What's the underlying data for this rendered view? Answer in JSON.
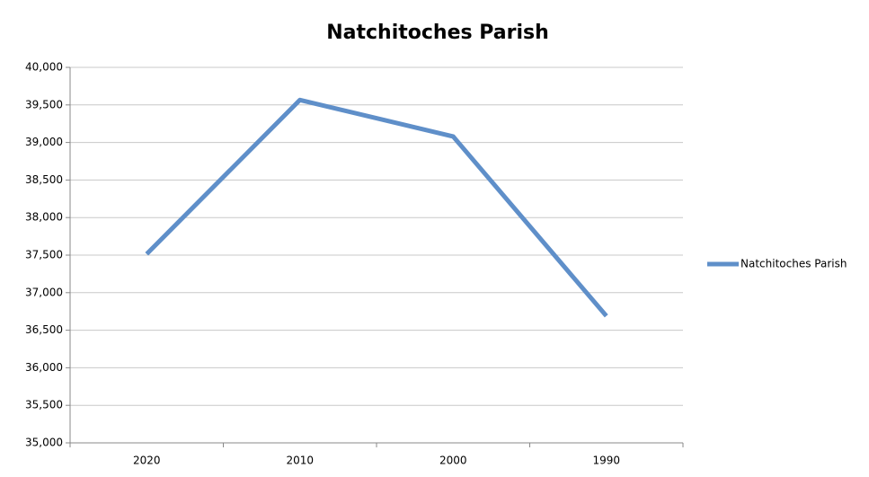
{
  "chart_data": {
    "type": "line",
    "title": "Natchitoches Parish",
    "categories": [
      "2020",
      "2010",
      "2000",
      "1990"
    ],
    "series": [
      {
        "name": "Natchitoches Parish",
        "color": "#5f8fc9",
        "values": [
          37515,
          39566,
          39080,
          36689
        ]
      }
    ],
    "ylim": [
      35000,
      40000
    ],
    "yticks": [
      {
        "value": 35000,
        "label": "35,000"
      },
      {
        "value": 35500,
        "label": "35,500"
      },
      {
        "value": 36000,
        "label": "36,000"
      },
      {
        "value": 36500,
        "label": "36,500"
      },
      {
        "value": 37000,
        "label": "37,000"
      },
      {
        "value": 37500,
        "label": "37,500"
      },
      {
        "value": 38000,
        "label": "38,000"
      },
      {
        "value": 38500,
        "label": "38,500"
      },
      {
        "value": 39000,
        "label": "39,000"
      },
      {
        "value": 39500,
        "label": "39,500"
      },
      {
        "value": 40000,
        "label": "40,000"
      }
    ],
    "grid": true,
    "legend": "right"
  }
}
